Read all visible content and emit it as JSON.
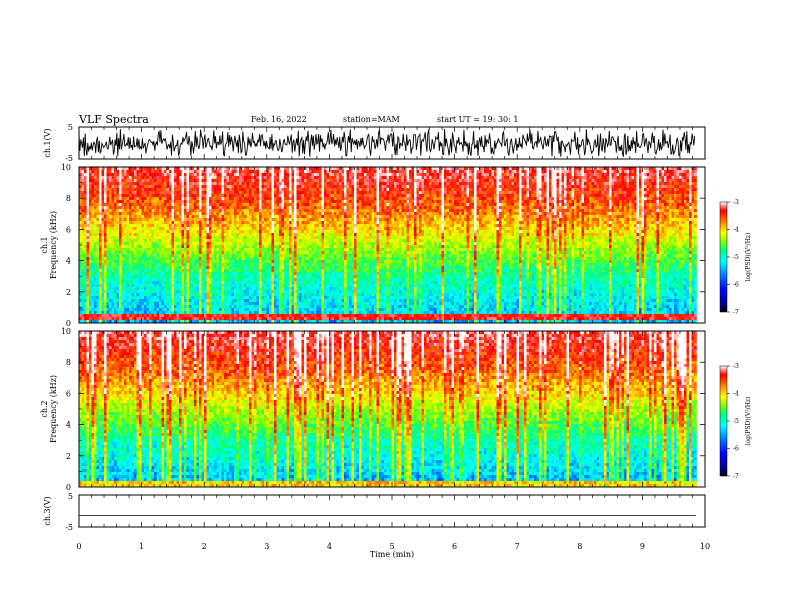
{
  "header": {
    "title": "VLF Spectra",
    "date": "Feb. 16, 2022",
    "station": "station=MAM",
    "start_ut": "start UT =   19: 30: 1"
  },
  "chart_data": [
    {
      "type": "line",
      "id": "ch1-waveform",
      "ylabel": "ch.1(V)",
      "ylim": [
        -5,
        5
      ],
      "yticks": [
        "5",
        "-5"
      ],
      "xlim": [
        0,
        10
      ],
      "description_values": {
        "signal": "dense impulsive waveform, amplitude saturating near ±5 V, data from 0 to ~9.85 min"
      }
    },
    {
      "type": "heatmap",
      "id": "ch1-spectrogram",
      "ylabel": "ch.1\nFrequency (kHz)",
      "ylim": [
        0,
        10
      ],
      "yticks": [
        "0",
        "2",
        "4",
        "6",
        "8",
        "10"
      ],
      "xlim": [
        0,
        10
      ],
      "colorbar": {
        "label": "log(PSD)(V²/Hz)",
        "range": [
          -7,
          -3
        ],
        "ticks": [
          "-3",
          "-4",
          "-5",
          "-6",
          "-7"
        ]
      }
    },
    {
      "type": "heatmap",
      "id": "ch2-spectrogram",
      "ylabel": "ch.2\nFrequency (kHz)",
      "ylim": [
        0,
        10
      ],
      "yticks": [
        "0",
        "2",
        "4",
        "6",
        "8",
        "10"
      ],
      "xlim": [
        0,
        10
      ],
      "colorbar": {
        "label": "log(PSD)(V²/Hz)",
        "range": [
          -7,
          -3
        ],
        "ticks": [
          "-3",
          "-4",
          "-5",
          "-6",
          "-7"
        ]
      }
    },
    {
      "type": "line",
      "id": "ch3-waveform",
      "ylabel": "ch.3(V)",
      "ylim": [
        -5,
        5
      ],
      "yticks": [
        "5",
        "-5"
      ],
      "x": [
        0,
        9.85
      ],
      "y": [
        -1.6,
        -1.6
      ],
      "xlim": [
        0,
        10
      ]
    }
  ],
  "xaxis": {
    "label": "Time (min)",
    "ticks": [
      "0",
      "1",
      "2",
      "3",
      "4",
      "5",
      "6",
      "7",
      "8",
      "9",
      "10"
    ]
  },
  "colors": {
    "colormap": [
      "#000080",
      "#0000ff",
      "#0080ff",
      "#00ffff",
      "#00ff80",
      "#80ff00",
      "#ffff00",
      "#ff8000",
      "#ff0000",
      "#ffffff"
    ]
  }
}
